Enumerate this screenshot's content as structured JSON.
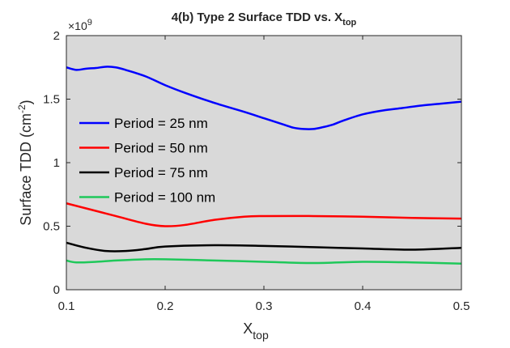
{
  "chart_data": {
    "type": "line",
    "title_main": "4(b) Type 2 Surface TDD vs. X",
    "title_sub": "top",
    "xlabel_main": "X",
    "xlabel_sub": "top",
    "ylabel_main": "Surface TDD (cm",
    "ylabel_sup": "-2",
    "ylabel_close": ")",
    "y_multiplier_prefix": "×10",
    "y_multiplier_exp": "9",
    "xlim": [
      0.1,
      0.5
    ],
    "ylim": [
      0,
      2
    ],
    "xticks": [
      0.1,
      0.2,
      0.3,
      0.4,
      0.5
    ],
    "xtick_labels": [
      "0.1",
      "0.2",
      "0.3",
      "0.4",
      "0.5"
    ],
    "yticks": [
      0,
      0.5,
      1,
      1.5,
      2
    ],
    "ytick_labels": [
      "0",
      "0.5",
      "1",
      "1.5",
      "2"
    ],
    "background": "#d9d9d9",
    "grid": false,
    "legend_position": "left",
    "series": [
      {
        "name": "Period = 25 nm",
        "color": "#0000ff",
        "x": [
          0.1,
          0.11,
          0.12,
          0.13,
          0.14,
          0.15,
          0.16,
          0.18,
          0.2,
          0.22,
          0.25,
          0.28,
          0.3,
          0.32,
          0.33,
          0.34,
          0.35,
          0.36,
          0.37,
          0.38,
          0.4,
          0.42,
          0.44,
          0.46,
          0.48,
          0.5
        ],
        "values": [
          1.75,
          1.73,
          1.74,
          1.745,
          1.755,
          1.75,
          1.73,
          1.68,
          1.61,
          1.55,
          1.47,
          1.4,
          1.35,
          1.3,
          1.275,
          1.265,
          1.265,
          1.28,
          1.3,
          1.33,
          1.38,
          1.41,
          1.43,
          1.45,
          1.465,
          1.48
        ]
      },
      {
        "name": "Period = 50 nm",
        "color": "#ff0000",
        "x": [
          0.1,
          0.12,
          0.15,
          0.18,
          0.2,
          0.22,
          0.25,
          0.28,
          0.3,
          0.35,
          0.4,
          0.45,
          0.5
        ],
        "values": [
          0.68,
          0.64,
          0.58,
          0.52,
          0.5,
          0.51,
          0.55,
          0.575,
          0.58,
          0.58,
          0.575,
          0.565,
          0.56
        ]
      },
      {
        "name": "Period = 75 nm",
        "color": "#000000",
        "x": [
          0.1,
          0.12,
          0.14,
          0.16,
          0.18,
          0.2,
          0.25,
          0.3,
          0.35,
          0.4,
          0.45,
          0.5
        ],
        "values": [
          0.37,
          0.33,
          0.305,
          0.305,
          0.32,
          0.34,
          0.35,
          0.345,
          0.335,
          0.325,
          0.315,
          0.33
        ]
      },
      {
        "name": "Period = 100 nm",
        "color": "#1fc85a",
        "x": [
          0.1,
          0.11,
          0.13,
          0.15,
          0.18,
          0.2,
          0.25,
          0.3,
          0.35,
          0.4,
          0.45,
          0.5
        ],
        "values": [
          0.23,
          0.215,
          0.22,
          0.23,
          0.24,
          0.24,
          0.23,
          0.22,
          0.21,
          0.22,
          0.215,
          0.205
        ]
      }
    ]
  }
}
